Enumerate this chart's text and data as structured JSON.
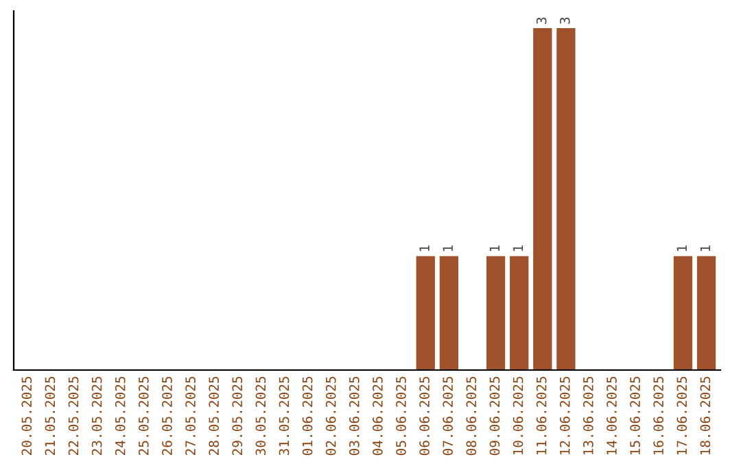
{
  "chart_data": {
    "type": "bar",
    "categories": [
      "20.05.2025",
      "21.05.2025",
      "22.05.2025",
      "23.05.2025",
      "24.05.2025",
      "25.05.2025",
      "26.05.2025",
      "27.05.2025",
      "28.05.2025",
      "29.05.2025",
      "30.05.2025",
      "31.05.2025",
      "01.06.2025",
      "02.06.2025",
      "03.06.2025",
      "04.06.2025",
      "05.06.2025",
      "06.06.2025",
      "07.06.2025",
      "08.06.2025",
      "09.06.2025",
      "10.06.2025",
      "11.06.2025",
      "12.06.2025",
      "13.06.2025",
      "14.06.2025",
      "15.06.2025",
      "16.06.2025",
      "17.06.2025",
      "18.06.2025"
    ],
    "values": [
      null,
      null,
      null,
      null,
      null,
      null,
      null,
      null,
      null,
      null,
      null,
      null,
      null,
      null,
      null,
      null,
      null,
      1,
      1,
      null,
      1,
      1,
      3,
      3,
      null,
      null,
      null,
      null,
      1,
      1
    ],
    "ylim": [
      0,
      3.15
    ],
    "value_labels": [
      null,
      null,
      null,
      null,
      null,
      null,
      null,
      null,
      null,
      null,
      null,
      null,
      null,
      null,
      null,
      null,
      null,
      "1",
      "1",
      null,
      "1",
      "1",
      "3",
      "3",
      null,
      null,
      null,
      null,
      "1",
      "1"
    ],
    "color": "#a0522d",
    "tick_labels": "x",
    "grid": false,
    "legend": false
  }
}
